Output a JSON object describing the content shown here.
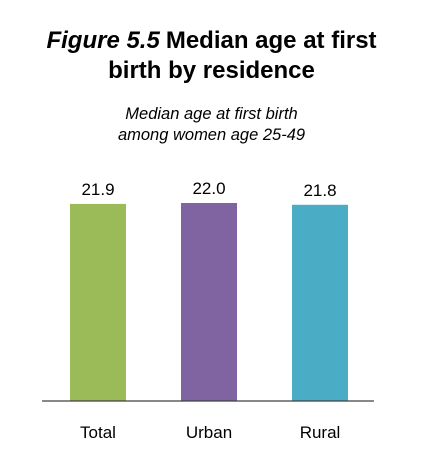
{
  "figure": {
    "number": "Figure 5.5",
    "title_line1": "Median age at first",
    "title_line2": "birth by residence"
  },
  "chart_data": {
    "type": "bar",
    "title": "Figure 5.5 Median age at first birth by residence",
    "subtitle_line1": "Median age at first birth",
    "subtitle_line2": "among women age 25-49",
    "categories": [
      "Total",
      "Urban",
      "Rural"
    ],
    "values": [
      21.9,
      22.0,
      21.8
    ],
    "value_labels": [
      "21.9",
      "22.0",
      "21.8"
    ],
    "colors": [
      "#9bbb59",
      "#8064a2",
      "#4bacc6"
    ],
    "axis_color": "#404040",
    "ylim": [
      0,
      22.0
    ],
    "grid": false,
    "legend": "none",
    "xlabel": "",
    "ylabel": ""
  }
}
